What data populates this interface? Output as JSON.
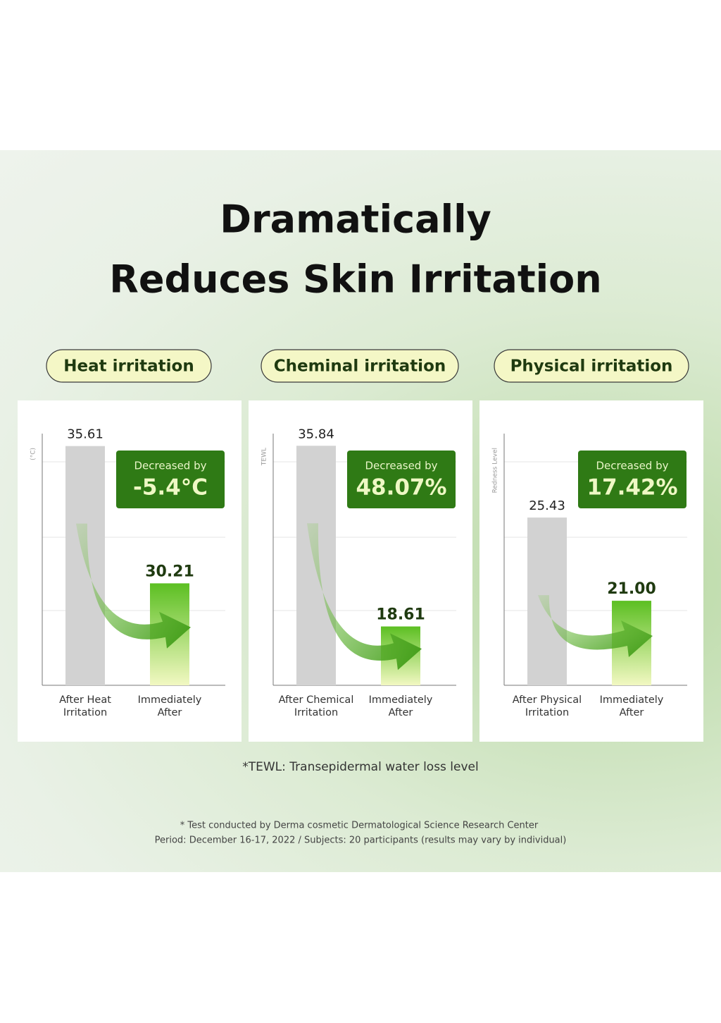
{
  "title_lines": [
    "Dramatically",
    "Reduces Skin Irritation"
  ],
  "chart_data": [
    {
      "type": "bar",
      "title": "Heat irritation",
      "ylabel": "(°C)",
      "categories": [
        "After Heat Irritation",
        "Immediately After"
      ],
      "values": [
        35.61,
        30.21
      ],
      "colors": [
        "#d2d2d2",
        "#5cbf22"
      ],
      "ylim": [
        26.2,
        36.1
      ],
      "annotation": {
        "text": "Decreased by",
        "value": "-5.4°C"
      }
    },
    {
      "type": "bar",
      "title": "Cheminal irritation",
      "ylabel": "TEWL",
      "categories": [
        "After Chemical Irritation",
        "Immediately After"
      ],
      "values": [
        35.84,
        18.61
      ],
      "colors": [
        "#d2d2d2",
        "#5cbf22"
      ],
      "ylim": [
        13.0,
        37.0
      ],
      "annotation": {
        "text": "Decreased by",
        "value": "48.07%"
      }
    },
    {
      "type": "bar",
      "title": "Physical irritation",
      "ylabel": "Redness Level",
      "categories": [
        "After Physical Irritation",
        "Immediately After"
      ],
      "values": [
        25.43,
        21.0
      ],
      "value_labels": [
        "25.43",
        "21.00"
      ],
      "colors": [
        "#d2d2d2",
        "#5cbf22"
      ],
      "ylim": [
        16.5,
        29.9
      ],
      "annotation": {
        "text": "Decreased by",
        "value": "17.42%"
      }
    }
  ],
  "footnote": "*TEWL: Transepidermal water loss level",
  "notes": [
    "* Test conducted by Derma cosmetic Dermatological Science Research Center",
    "Period: December 16-17, 2022 / Subjects: 20 participants (results may vary by individual)"
  ]
}
